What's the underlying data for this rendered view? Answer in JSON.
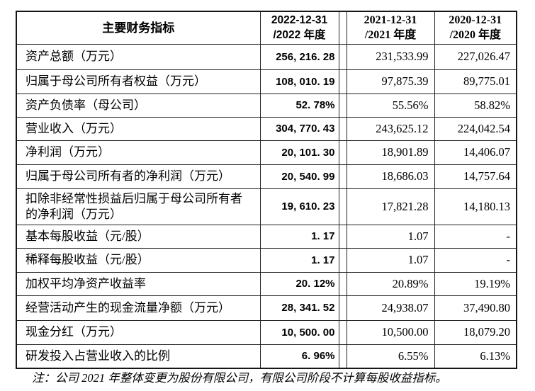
{
  "colors": {
    "background": "#ffffff",
    "border": "#1c1c1c",
    "text": "#000000"
  },
  "table": {
    "header": {
      "label": "主要财务指标",
      "col_2022": "2022-12-31\n/2022 年度",
      "col_2021": "2021-12-31\n/2021 年度",
      "col_2020": "2020-12-31\n/2020 年度"
    },
    "rows": [
      {
        "label": "资产总额（万元）",
        "v2022": "256, 216. 28",
        "v2021": "231,533.99",
        "v2020": "227,026.47"
      },
      {
        "label": "归属于母公司所有者权益（万元）",
        "v2022": "108, 010. 19",
        "v2021": "97,875.39",
        "v2020": "89,775.01"
      },
      {
        "label": "资产负债率（母公司）",
        "v2022": "52. 78%",
        "v2021": "55.56%",
        "v2020": "58.82%"
      },
      {
        "label": "营业收入（万元）",
        "v2022": "304, 770. 43",
        "v2021": "243,625.12",
        "v2020": "224,042.54"
      },
      {
        "label": "净利润（万元）",
        "v2022": "20, 101. 30",
        "v2021": "18,901.89",
        "v2020": "14,406.07"
      },
      {
        "label": "归属于母公司所有者的净利润（万元）",
        "v2022": "20, 540. 99",
        "v2021": "18,686.03",
        "v2020": "14,757.64"
      },
      {
        "label": "扣除非经常性损益后归属于母公司所有者\n的净利润（万元）",
        "v2022": "19, 610. 23",
        "v2021": "17,821.28",
        "v2020": "14,180.13"
      },
      {
        "label": "基本每股收益（元/股）",
        "v2022": "1. 17",
        "v2021": "1.07",
        "v2020": "-"
      },
      {
        "label": "稀释每股收益（元/股）",
        "v2022": "1. 17",
        "v2021": "1.07",
        "v2020": "-"
      },
      {
        "label": "加权平均净资产收益率",
        "v2022": "20. 12%",
        "v2021": "20.89%",
        "v2020": "19.19%"
      },
      {
        "label": "经营活动产生的现金流量净额（万元）",
        "v2022": "28, 341. 52",
        "v2021": "24,938.07",
        "v2020": "37,490.80"
      },
      {
        "label": "现金分红（万元）",
        "v2022": "10, 500. 00",
        "v2021": "10,500.00",
        "v2020": "18,079.20"
      },
      {
        "label": "研发投入占营业收入的比例",
        "v2022": "6. 96%",
        "v2021": "6.55%",
        "v2020": "6.13%"
      }
    ]
  },
  "note": "注：公司 2021 年整体变更为股份有限公司，有限公司阶段不计算每股收益指标。"
}
